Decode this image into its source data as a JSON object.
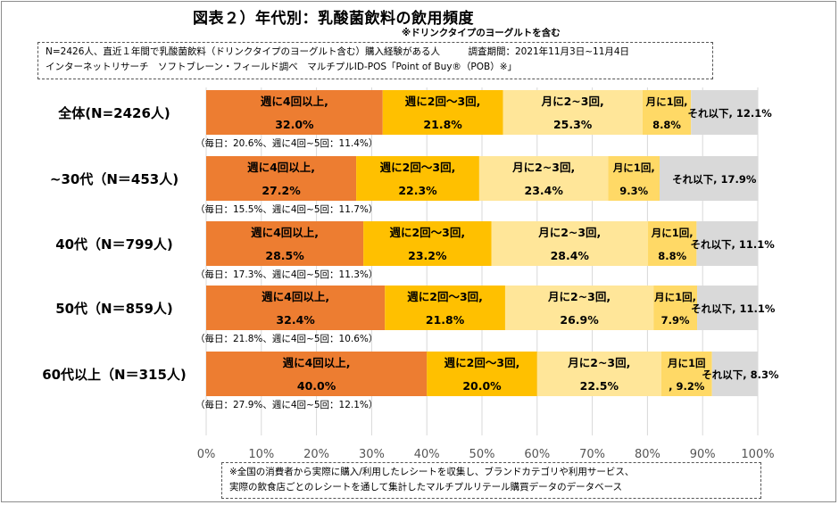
{
  "title": "図表２）年代別：乳酸菌飲料の飲用頻度",
  "subtitle": "※ドリンクタイプのヨーグルトを含む",
  "note_top": [
    "N=2426人、直近１年間で乳酸菌飲料（ドリンクタイプのヨーグルト含む）購入経験がある人　　　調査期間：2021年11月3日~11月4日",
    "インターネットリサーチ　ソフトブレーン・フィールド調べ　マルチプルID-POS「Point of Buy®（POB）※」"
  ],
  "note_bottom": [
    "※全国の消費者から実際に購入/利用したレシートを収集し、ブランドカテゴリや利用サービス、",
    "実際の飲食店ごとのレシートを通して集計したマルチプルリテール購買データのデータベース"
  ],
  "chart_data": {
    "type": "bar",
    "stacked": true,
    "orientation": "horizontal",
    "categories": [
      "全体(N=2426人)",
      "~30代（N＝453人)",
      "40代（N＝799人)",
      "50代（N＝859人)",
      "60代以上（N＝315人)"
    ],
    "series": [
      {
        "name": "週に4回以上",
        "color": "#ED7D31",
        "values": [
          32.0,
          27.2,
          28.5,
          32.4,
          40.0
        ],
        "labels": [
          [
            "週に4回以上,",
            "32.0%"
          ],
          [
            "週に4回以上,",
            "27.2%"
          ],
          [
            "週に4回以上,",
            "28.5%"
          ],
          [
            "週に4回以上,",
            "32.4%"
          ],
          [
            "週に4回以上,",
            "40.0%"
          ]
        ]
      },
      {
        "name": "週に2回～3回",
        "color": "#FFC000",
        "values": [
          21.8,
          22.3,
          23.2,
          21.8,
          20.0
        ],
        "labels": [
          [
            "週に2回～3回,",
            "21.8%"
          ],
          [
            "週に2回～3回,",
            "22.3%"
          ],
          [
            "週に2回～3回,",
            "23.2%"
          ],
          [
            "週に2回～3回,",
            "21.8%"
          ],
          [
            "週に2回～3回,",
            "20.0%"
          ]
        ]
      },
      {
        "name": "月に2~3回",
        "color": "#FFE699",
        "values": [
          25.3,
          23.4,
          28.4,
          26.9,
          22.5
        ],
        "labels": [
          [
            "月に2~3回,",
            "25.3%"
          ],
          [
            "月に2~3回,",
            "23.4%"
          ],
          [
            "月に2~3回,",
            "28.4%"
          ],
          [
            "月に2~3回,",
            "26.9%"
          ],
          [
            "月に2~3回,",
            "22.5%"
          ]
        ]
      },
      {
        "name": "月に1回",
        "color": "#FFD966",
        "values": [
          8.8,
          9.3,
          8.8,
          7.9,
          9.2
        ],
        "labels": [
          [
            "月に1回,",
            "8.8%"
          ],
          [
            "月に1回,",
            "9.3%"
          ],
          [
            "月に1回,",
            "8.8%"
          ],
          [
            "月に1回,",
            "7.9%"
          ],
          [
            "月に1回",
            ", 9.2%"
          ]
        ]
      },
      {
        "name": "それ以下",
        "color": "#D9D9D9",
        "values": [
          12.1,
          17.9,
          11.1,
          11.1,
          8.3
        ],
        "labels": [
          [
            "それ以下, 12.1%"
          ],
          [
            "それ以下, 17.9%"
          ],
          [
            "それ以下, 11.1%"
          ],
          [
            "それ以下, 11.1%"
          ],
          [
            "それ以下, 8.3%"
          ]
        ]
      }
    ],
    "sub_notes": [
      "（毎日：20.6%、週に4回~5回：11.4%）",
      "（毎日：15.5%、週に4回~5回：11.7%）",
      "（毎日：17.3%、週に4回~5回：11.3%）",
      "（毎日：21.8%、週に4回~5回：10.6%）",
      "（毎日：27.9%、週に4回~5回：12.1%）"
    ],
    "xlim": [
      0,
      100
    ],
    "xticks": [
      "0%",
      "10%",
      "20%",
      "30%",
      "40%",
      "50%",
      "60%",
      "70%",
      "80%",
      "90%",
      "100%"
    ],
    "xlabel": "",
    "ylabel": "",
    "grid": true,
    "legend": "none"
  }
}
